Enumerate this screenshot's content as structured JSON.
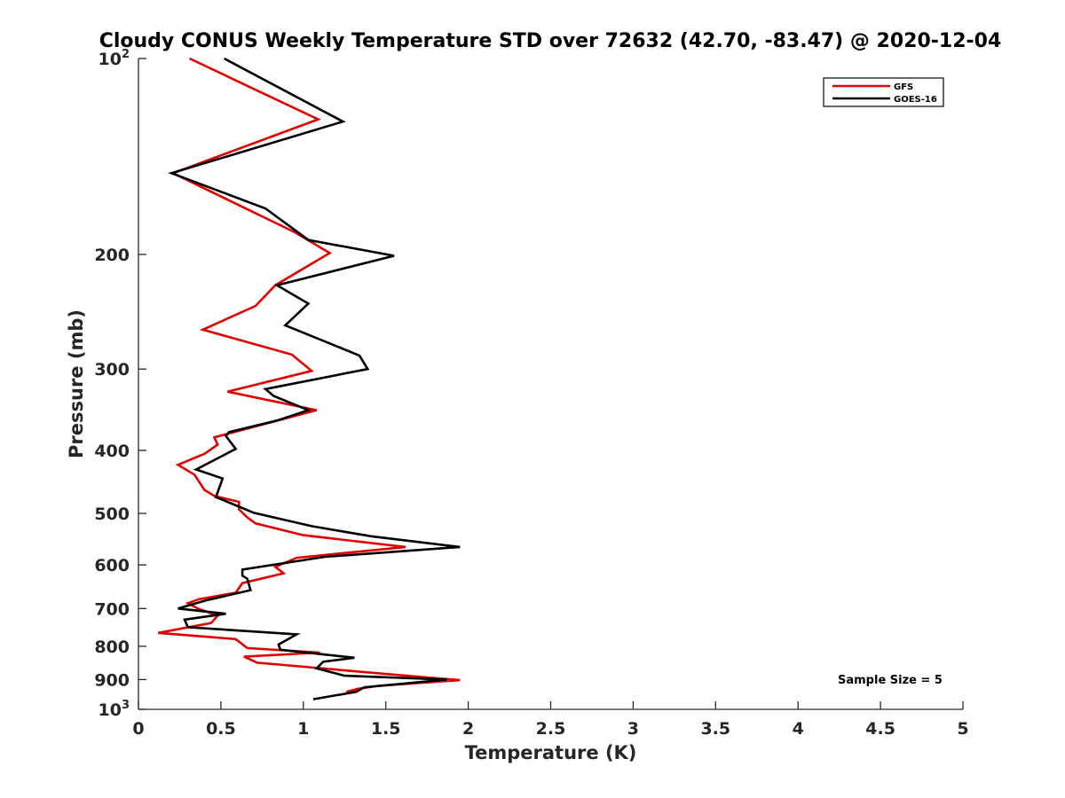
{
  "chart_data": {
    "type": "line",
    "title": "Cloudy CONUS Weekly Temperature STD over 72632 (42.70, -83.47) @ 2020-12-04",
    "xlabel": "Temperature (K)",
    "ylabel": "Pressure (mb)",
    "xlim": [
      0,
      5
    ],
    "ylim": [
      100,
      1000
    ],
    "y_scale": "log",
    "y_reversed": true,
    "x_ticks": [
      "0",
      "0.5",
      "1",
      "1.5",
      "2",
      "2.5",
      "3",
      "3.5",
      "4",
      "4.5",
      "5"
    ],
    "y_ticks": [
      {
        "value": 100,
        "base": "10",
        "exp": "2"
      },
      {
        "value": 200,
        "label": "200"
      },
      {
        "value": 300,
        "label": "300"
      },
      {
        "value": 400,
        "label": "400"
      },
      {
        "value": 500,
        "label": "500"
      },
      {
        "value": 600,
        "label": "600"
      },
      {
        "value": 700,
        "label": "700"
      },
      {
        "value": 800,
        "label": "800"
      },
      {
        "value": 900,
        "label": "900"
      },
      {
        "value": 1000,
        "base": "10",
        "exp": "3"
      }
    ],
    "grid": false,
    "legend_position": "top-right",
    "annotation": "Sample Size = 5",
    "series": [
      {
        "name": "GFS",
        "color": "#e00000",
        "points": [
          [
            0.31,
            100
          ],
          [
            1.09,
            124
          ],
          [
            0.21,
            150
          ],
          [
            0.65,
            170
          ],
          [
            0.95,
            185
          ],
          [
            1.16,
            199
          ],
          [
            0.83,
            223
          ],
          [
            0.71,
            240
          ],
          [
            0.39,
            261
          ],
          [
            0.93,
            285
          ],
          [
            1.05,
            302
          ],
          [
            0.54,
            325
          ],
          [
            1.08,
            347
          ],
          [
            0.46,
            382
          ],
          [
            0.48,
            392
          ],
          [
            0.4,
            405
          ],
          [
            0.24,
            421
          ],
          [
            0.34,
            436
          ],
          [
            0.4,
            460
          ],
          [
            0.46,
            470
          ],
          [
            0.61,
            480
          ],
          [
            0.61,
            493
          ],
          [
            0.66,
            507
          ],
          [
            0.71,
            518
          ],
          [
            1.0,
            540
          ],
          [
            1.62,
            563
          ],
          [
            0.96,
            585
          ],
          [
            0.83,
            604
          ],
          [
            0.88,
            618
          ],
          [
            0.63,
            640
          ],
          [
            0.59,
            662
          ],
          [
            0.37,
            677
          ],
          [
            0.3,
            687
          ],
          [
            0.36,
            700
          ],
          [
            0.48,
            718
          ],
          [
            0.44,
            737
          ],
          [
            0.12,
            763
          ],
          [
            0.59,
            780
          ],
          [
            0.66,
            805
          ],
          [
            1.1,
            818
          ],
          [
            0.64,
            830
          ],
          [
            0.72,
            848
          ],
          [
            1.45,
            880
          ],
          [
            1.95,
            902
          ],
          [
            1.46,
            920
          ],
          [
            1.33,
            930
          ],
          [
            1.26,
            940
          ]
        ]
      },
      {
        "name": "GOES-16",
        "color": "#000000",
        "points": [
          [
            0.52,
            100
          ],
          [
            1.24,
            125
          ],
          [
            0.2,
            150
          ],
          [
            0.77,
            170
          ],
          [
            1.03,
            190
          ],
          [
            1.55,
            201
          ],
          [
            0.84,
            223
          ],
          [
            1.03,
            238
          ],
          [
            0.89,
            257
          ],
          [
            1.34,
            286
          ],
          [
            1.39,
            300
          ],
          [
            0.77,
            322
          ],
          [
            0.82,
            330
          ],
          [
            1.03,
            347
          ],
          [
            0.84,
            360
          ],
          [
            0.55,
            375
          ],
          [
            0.53,
            380
          ],
          [
            0.59,
            398
          ],
          [
            0.35,
            428
          ],
          [
            0.51,
            442
          ],
          [
            0.47,
            472
          ],
          [
            0.54,
            480
          ],
          [
            0.7,
            499
          ],
          [
            1.05,
            523
          ],
          [
            1.41,
            542
          ],
          [
            1.95,
            563
          ],
          [
            1.13,
            583
          ],
          [
            0.63,
            610
          ],
          [
            0.63,
            623
          ],
          [
            0.66,
            630
          ],
          [
            0.68,
            656
          ],
          [
            0.41,
            680
          ],
          [
            0.24,
            700
          ],
          [
            0.53,
            713
          ],
          [
            0.28,
            728
          ],
          [
            0.3,
            748
          ],
          [
            0.96,
            767
          ],
          [
            0.85,
            795
          ],
          [
            0.86,
            810
          ],
          [
            1.31,
            833
          ],
          [
            1.12,
            845
          ],
          [
            1.08,
            865
          ],
          [
            1.25,
            888
          ],
          [
            1.87,
            900
          ],
          [
            1.37,
            925
          ],
          [
            1.32,
            940
          ],
          [
            1.06,
            965
          ]
        ]
      }
    ]
  }
}
